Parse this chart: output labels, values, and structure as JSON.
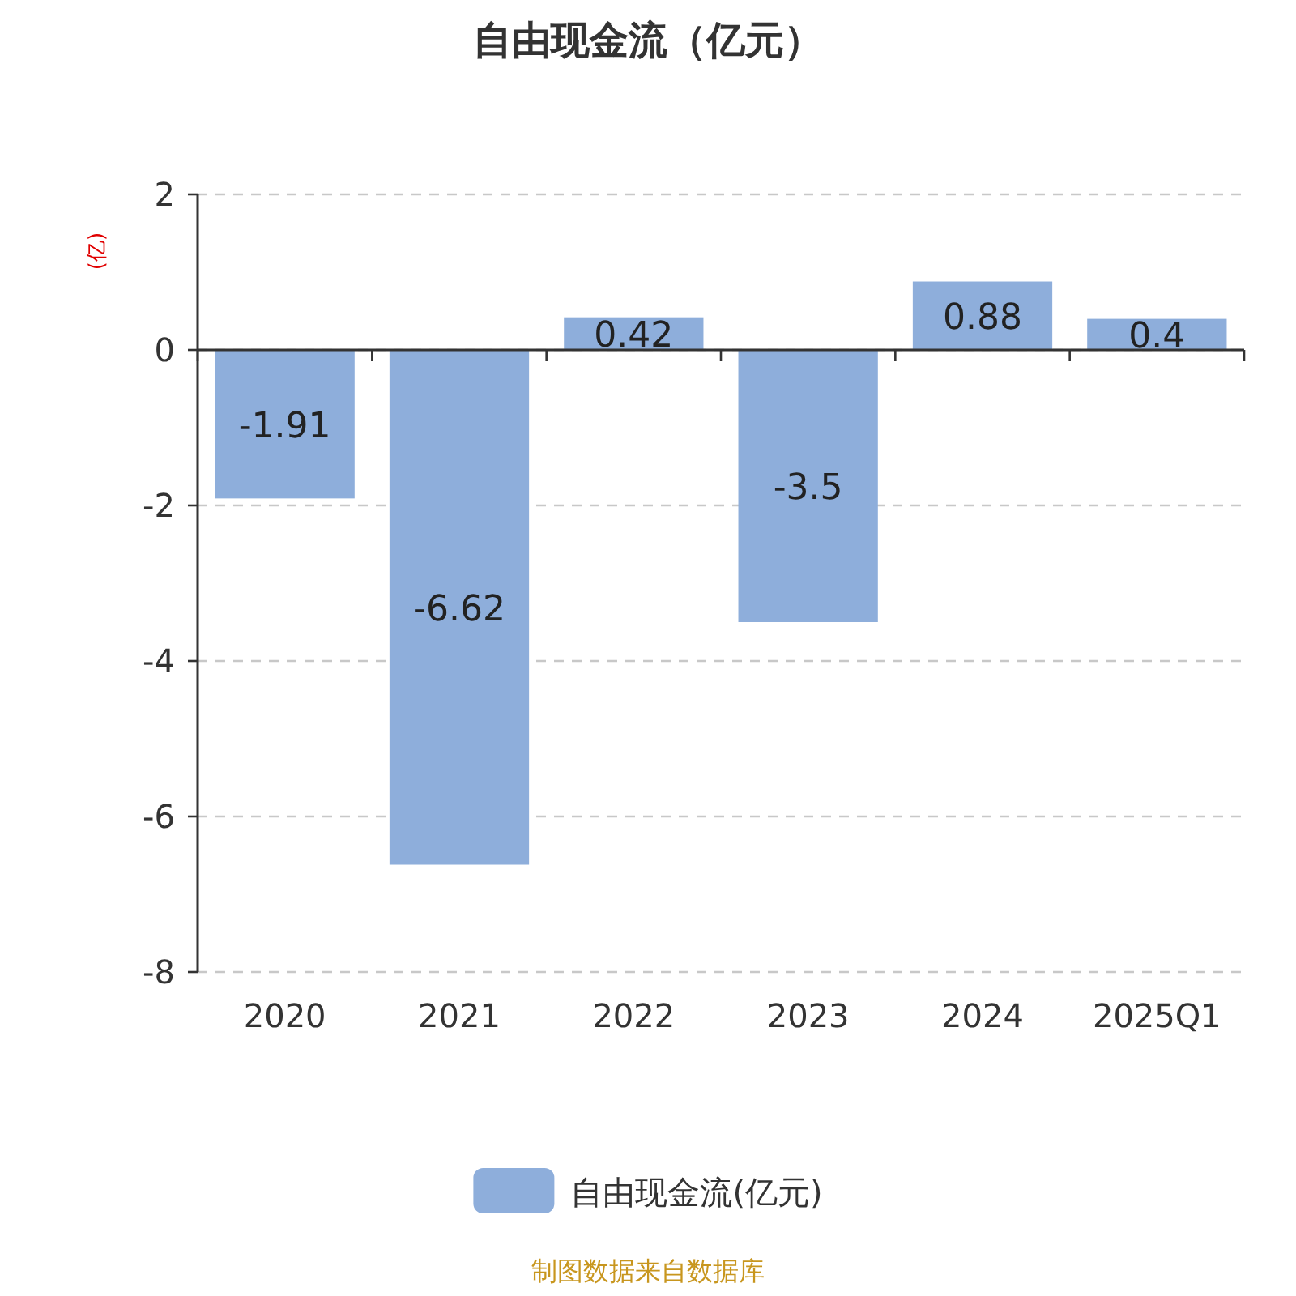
{
  "chart_data": {
    "type": "bar",
    "title": "自由现金流（亿元）",
    "ylabel": "(亿)",
    "categories": [
      "2020",
      "2021",
      "2022",
      "2023",
      "2024",
      "2025Q1"
    ],
    "series": [
      {
        "name": "自由现金流(亿元)",
        "color": "#8eaedb",
        "values": [
          -1.91,
          -6.62,
          0.42,
          -3.5,
          0.88,
          0.4
        ]
      }
    ],
    "ylim": [
      -8,
      2
    ],
    "yticks": [
      -8,
      -6,
      -4,
      -2,
      0,
      2
    ],
    "grid": "y",
    "legend": "bottom",
    "data_labels": true,
    "annotations": [
      "制图数据来自数据库"
    ]
  }
}
